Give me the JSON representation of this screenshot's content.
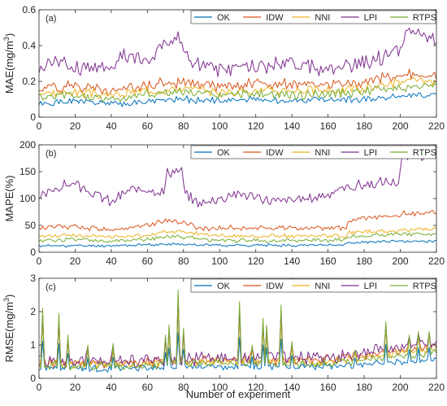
{
  "figure": {
    "xlabel": "Number of experiment"
  },
  "chart_data": [
    {
      "type": "line",
      "panel_label": "(a)",
      "ylabel": "MAE(mg/m",
      "ylabel_sup": "3",
      "ylabel_end": ")",
      "xlim": [
        0,
        220
      ],
      "ylim": [
        0,
        0.6
      ],
      "xticks": [
        "0",
        "20",
        "40",
        "60",
        "80",
        "100",
        "120",
        "140",
        "160",
        "180",
        "200",
        "220"
      ],
      "yticks": [
        "0",
        "0.2",
        "0.4",
        "0.6"
      ],
      "legend_position": "top-right",
      "grid": false,
      "series": [
        {
          "name": "OK",
          "color": "#0072BD",
          "shape": "mae",
          "anchors": [
            [
              0,
              0.07
            ],
            [
              20,
              0.09
            ],
            [
              40,
              0.07
            ],
            [
              60,
              0.09
            ],
            [
              80,
              0.1
            ],
            [
              100,
              0.09
            ],
            [
              120,
              0.1
            ],
            [
              140,
              0.09
            ],
            [
              160,
              0.1
            ],
            [
              180,
              0.1
            ],
            [
              200,
              0.12
            ],
            [
              220,
              0.12
            ]
          ],
          "amp": 0.015,
          "seed": 1
        },
        {
          "name": "IDW",
          "color": "#D95319",
          "shape": "mae",
          "anchors": [
            [
              0,
              0.16
            ],
            [
              20,
              0.18
            ],
            [
              40,
              0.15
            ],
            [
              60,
              0.18
            ],
            [
              80,
              0.19
            ],
            [
              100,
              0.17
            ],
            [
              120,
              0.19
            ],
            [
              140,
              0.18
            ],
            [
              160,
              0.18
            ],
            [
              180,
              0.19
            ],
            [
              200,
              0.24
            ],
            [
              220,
              0.24
            ]
          ],
          "amp": 0.025,
          "seed": 2
        },
        {
          "name": "NNI",
          "color": "#EDB120",
          "shape": "mae",
          "anchors": [
            [
              0,
              0.13
            ],
            [
              20,
              0.14
            ],
            [
              40,
              0.12
            ],
            [
              60,
              0.15
            ],
            [
              80,
              0.16
            ],
            [
              100,
              0.14
            ],
            [
              120,
              0.15
            ],
            [
              140,
              0.15
            ],
            [
              160,
              0.15
            ],
            [
              180,
              0.16
            ],
            [
              200,
              0.2
            ],
            [
              220,
              0.2
            ]
          ],
          "amp": 0.02,
          "seed": 3
        },
        {
          "name": "LPI",
          "color": "#7E2F8E",
          "shape": "mae",
          "anchors": [
            [
              0,
              0.27
            ],
            [
              10,
              0.32
            ],
            [
              20,
              0.28
            ],
            [
              40,
              0.28
            ],
            [
              45,
              0.34
            ],
            [
              60,
              0.32
            ],
            [
              76,
              0.46
            ],
            [
              85,
              0.3
            ],
            [
              100,
              0.27
            ],
            [
              120,
              0.28
            ],
            [
              140,
              0.3
            ],
            [
              160,
              0.26
            ],
            [
              180,
              0.3
            ],
            [
              200,
              0.38
            ],
            [
              203,
              0.47
            ],
            [
              215,
              0.45
            ],
            [
              220,
              0.43
            ]
          ],
          "amp": 0.035,
          "seed": 4
        },
        {
          "name": "RTPS",
          "color": "#77AC30",
          "shape": "mae",
          "anchors": [
            [
              0,
              0.11
            ],
            [
              20,
              0.12
            ],
            [
              40,
              0.1
            ],
            [
              60,
              0.13
            ],
            [
              80,
              0.14
            ],
            [
              100,
              0.12
            ],
            [
              120,
              0.13
            ],
            [
              140,
              0.12
            ],
            [
              160,
              0.13
            ],
            [
              180,
              0.14
            ],
            [
              200,
              0.17
            ],
            [
              220,
              0.17
            ]
          ],
          "amp": 0.02,
          "seed": 5
        }
      ]
    },
    {
      "type": "line",
      "panel_label": "(b)",
      "ylabel": "MAPE(%)",
      "xlim": [
        0,
        220
      ],
      "ylim": [
        0,
        200
      ],
      "xticks": [
        "0",
        "20",
        "40",
        "60",
        "80",
        "100",
        "120",
        "140",
        "160",
        "180",
        "200",
        "220"
      ],
      "yticks": [
        "0",
        "50",
        "100",
        "150",
        "200"
      ],
      "legend_position": "top-right",
      "grid": false,
      "series": [
        {
          "name": "OK",
          "color": "#0072BD",
          "shape": "mape",
          "anchors": [
            [
              0,
              12
            ],
            [
              40,
              12
            ],
            [
              60,
              14
            ],
            [
              80,
              15
            ],
            [
              100,
              13
            ],
            [
              140,
              13
            ],
            [
              170,
              14
            ],
            [
              172,
              18
            ],
            [
              200,
              20
            ],
            [
              220,
              21
            ]
          ],
          "amp": 2,
          "seed": 11
        },
        {
          "name": "IDW",
          "color": "#D95319",
          "shape": "mape",
          "anchors": [
            [
              0,
              45
            ],
            [
              20,
              48
            ],
            [
              40,
              42
            ],
            [
              60,
              50
            ],
            [
              70,
              60
            ],
            [
              80,
              55
            ],
            [
              90,
              45
            ],
            [
              110,
              45
            ],
            [
              140,
              45
            ],
            [
              170,
              46
            ],
            [
              172,
              60
            ],
            [
              200,
              68
            ],
            [
              202,
              72
            ],
            [
              220,
              75
            ]
          ],
          "amp": 4,
          "seed": 12
        },
        {
          "name": "NNI",
          "color": "#EDB120",
          "shape": "mape",
          "anchors": [
            [
              0,
              30
            ],
            [
              20,
              32
            ],
            [
              40,
              28
            ],
            [
              60,
              32
            ],
            [
              70,
              40
            ],
            [
              80,
              38
            ],
            [
              100,
              30
            ],
            [
              140,
              30
            ],
            [
              170,
              30
            ],
            [
              172,
              38
            ],
            [
              200,
              40
            ],
            [
              220,
              44
            ]
          ],
          "amp": 3,
          "seed": 13
        },
        {
          "name": "LPI",
          "color": "#7E2F8E",
          "shape": "mape",
          "anchors": [
            [
              0,
              100
            ],
            [
              10,
              120
            ],
            [
              20,
              128
            ],
            [
              30,
              110
            ],
            [
              40,
              92
            ],
            [
              50,
              115
            ],
            [
              60,
              120
            ],
            [
              69,
              110
            ],
            [
              71,
              150
            ],
            [
              79,
              150
            ],
            [
              81,
              105
            ],
            [
              90,
              90
            ],
            [
              110,
              110
            ],
            [
              130,
              95
            ],
            [
              150,
              100
            ],
            [
              170,
              120
            ],
            [
              190,
              130
            ],
            [
              199,
              130
            ],
            [
              201,
              175
            ],
            [
              210,
              180
            ],
            [
              220,
              180
            ]
          ],
          "amp": 8,
          "seed": 14
        },
        {
          "name": "RTPS",
          "color": "#77AC30",
          "shape": "mape",
          "anchors": [
            [
              0,
              22
            ],
            [
              20,
              24
            ],
            [
              40,
              20
            ],
            [
              60,
              24
            ],
            [
              70,
              30
            ],
            [
              80,
              28
            ],
            [
              100,
              22
            ],
            [
              140,
              22
            ],
            [
              170,
              23
            ],
            [
              172,
              30
            ],
            [
              200,
              33
            ],
            [
              220,
              35
            ]
          ],
          "amp": 3,
          "seed": 15
        }
      ]
    },
    {
      "type": "line",
      "panel_label": "(c)",
      "ylabel": "RMSE(mg/m",
      "ylabel_sup": "3",
      "ylabel_end": ")",
      "xlim": [
        0,
        220
      ],
      "ylim": [
        0,
        3
      ],
      "xticks": [
        "0",
        "20",
        "40",
        "60",
        "80",
        "100",
        "120",
        "140",
        "160",
        "180",
        "200",
        "220"
      ],
      "yticks": [
        "0",
        "1",
        "2",
        "3"
      ],
      "legend_position": "top-right",
      "grid": false,
      "spikes": [
        [
          2,
          2.1
        ],
        [
          11,
          1.95
        ],
        [
          16,
          1.3
        ],
        [
          27,
          1.0
        ],
        [
          41,
          1.05
        ],
        [
          70,
          1.3
        ],
        [
          72,
          1.6
        ],
        [
          77,
          2.65
        ],
        [
          80,
          1.5
        ],
        [
          111,
          2.3
        ],
        [
          118,
          1.0
        ],
        [
          124,
          1.8
        ],
        [
          126,
          1.6
        ],
        [
          134,
          2.2
        ],
        [
          140,
          1.1
        ],
        [
          175,
          0.85
        ],
        [
          192,
          1.7
        ],
        [
          205,
          1.3
        ],
        [
          210,
          1.4
        ],
        [
          216,
          1.4
        ]
      ],
      "series": [
        {
          "name": "OK",
          "color": "#0072BD",
          "shape": "rmse",
          "anchors": [
            [
              0,
              0.3
            ],
            [
              40,
              0.3
            ],
            [
              80,
              0.35
            ],
            [
              120,
              0.35
            ],
            [
              160,
              0.35
            ],
            [
              190,
              0.45
            ],
            [
              220,
              0.55
            ]
          ],
          "amp": 0.08,
          "spike_scale": 0.45,
          "seed": 21
        },
        {
          "name": "IDW",
          "color": "#D95319",
          "shape": "rmse",
          "anchors": [
            [
              0,
              0.5
            ],
            [
              40,
              0.45
            ],
            [
              80,
              0.55
            ],
            [
              120,
              0.55
            ],
            [
              160,
              0.55
            ],
            [
              190,
              0.75
            ],
            [
              220,
              0.95
            ]
          ],
          "amp": 0.12,
          "spike_scale": 0.8,
          "seed": 22
        },
        {
          "name": "NNI",
          "color": "#EDB120",
          "shape": "rmse",
          "anchors": [
            [
              0,
              0.45
            ],
            [
              40,
              0.4
            ],
            [
              80,
              0.5
            ],
            [
              120,
              0.5
            ],
            [
              160,
              0.5
            ],
            [
              190,
              0.7
            ],
            [
              220,
              0.9
            ]
          ],
          "amp": 0.1,
          "spike_scale": 0.75,
          "seed": 23
        },
        {
          "name": "LPI",
          "color": "#7E2F8E",
          "shape": "rmse",
          "anchors": [
            [
              0,
              0.55
            ],
            [
              40,
              0.5
            ],
            [
              80,
              0.6
            ],
            [
              120,
              0.6
            ],
            [
              160,
              0.6
            ],
            [
              190,
              0.85
            ],
            [
              220,
              1.1
            ]
          ],
          "amp": 0.15,
          "spike_scale": 0.9,
          "seed": 24
        },
        {
          "name": "RTPS",
          "color": "#77AC30",
          "shape": "rmse",
          "anchors": [
            [
              0,
              0.4
            ],
            [
              40,
              0.35
            ],
            [
              80,
              0.45
            ],
            [
              120,
              0.45
            ],
            [
              160,
              0.45
            ],
            [
              190,
              0.6
            ],
            [
              220,
              0.75
            ]
          ],
          "amp": 0.1,
          "spike_scale": 1.0,
          "seed": 25
        }
      ]
    }
  ]
}
